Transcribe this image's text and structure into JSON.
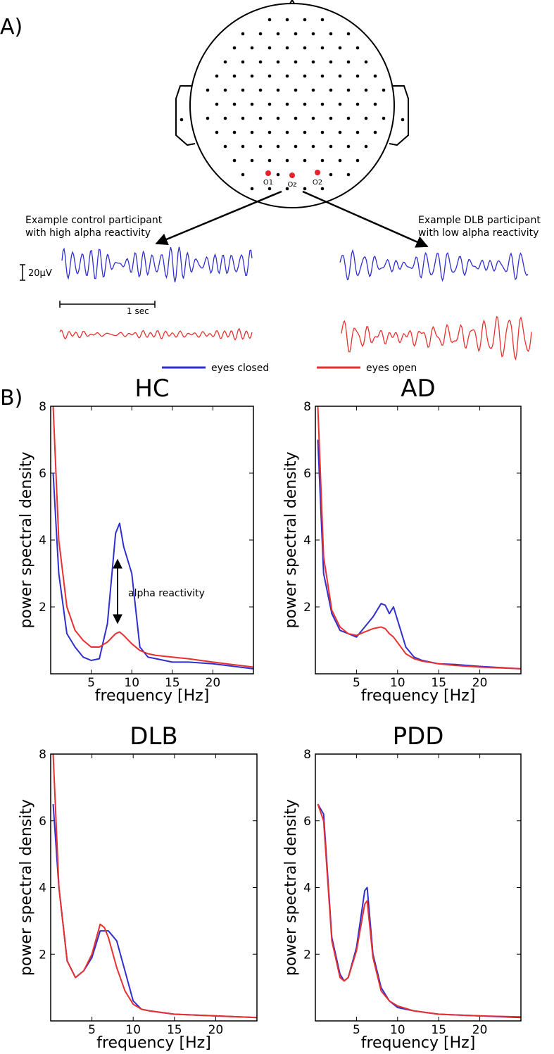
{
  "panel_a": {
    "label": "A)",
    "electrodes": [
      "O1",
      "Oz",
      "O2"
    ],
    "left_caption": [
      "Example control participant",
      "with high alpha reactivity"
    ],
    "right_caption": [
      "Example DLB participant",
      "with low alpha reactivity"
    ],
    "amplitude_scale": "20µV",
    "time_scale": "1 sec"
  },
  "panel_b": {
    "label": "B)"
  },
  "chart_data": [
    {
      "type": "line",
      "title": "HC",
      "x_label": "frequency [Hz]",
      "y_label": "power spectral density",
      "annotation": "alpha reactivity",
      "xlim": [
        0,
        25
      ],
      "ylim": [
        0,
        8
      ],
      "xticks": [
        5,
        10,
        15,
        20
      ],
      "yticks": [
        2,
        4,
        6,
        8
      ],
      "x": [
        0.3,
        1,
        2,
        3,
        4,
        5,
        6,
        7,
        8,
        8.5,
        9,
        10,
        11,
        12,
        13,
        15,
        17,
        20,
        25
      ],
      "series": [
        {
          "name": "eyes closed",
          "color": "#2f2fd0",
          "values": [
            6,
            3,
            1.2,
            0.8,
            0.5,
            0.4,
            0.45,
            1.5,
            4.2,
            4.5,
            3.8,
            3.0,
            0.8,
            0.5,
            0.45,
            0.35,
            0.35,
            0.3,
            0.15
          ]
        },
        {
          "name": "eyes open",
          "color": "#e8312f",
          "values": [
            8,
            4,
            2,
            1.3,
            1.0,
            0.8,
            0.8,
            0.95,
            1.2,
            1.25,
            1.15,
            0.9,
            0.7,
            0.6,
            0.55,
            0.5,
            0.45,
            0.35,
            0.2
          ]
        }
      ]
    },
    {
      "type": "line",
      "title": "AD",
      "x_label": "frequency [Hz]",
      "y_label": "power spectral density",
      "xlim": [
        0,
        25
      ],
      "ylim": [
        0,
        8
      ],
      "xticks": [
        5,
        10,
        15,
        20
      ],
      "yticks": [
        2,
        4,
        6,
        8
      ],
      "x": [
        0.3,
        1,
        2,
        3,
        4,
        5,
        6,
        7,
        8,
        8.5,
        9,
        9.5,
        11,
        12,
        13,
        15,
        17,
        20,
        25
      ],
      "series": [
        {
          "name": "eyes closed",
          "color": "#2f2fd0",
          "values": [
            7,
            3,
            1.8,
            1.3,
            1.2,
            1.1,
            1.4,
            1.7,
            2.1,
            2.05,
            1.8,
            2.0,
            0.8,
            0.5,
            0.4,
            0.3,
            0.28,
            0.22,
            0.15
          ]
        },
        {
          "name": "eyes open",
          "color": "#e8312f",
          "values": [
            8,
            3.5,
            1.9,
            1.4,
            1.2,
            1.15,
            1.25,
            1.35,
            1.4,
            1.35,
            1.2,
            1.1,
            0.6,
            0.45,
            0.38,
            0.3,
            0.25,
            0.2,
            0.15
          ]
        }
      ]
    },
    {
      "type": "line",
      "title": "DLB",
      "x_label": "frequency [Hz]",
      "y_label": "power spectral density",
      "xlim": [
        0,
        25
      ],
      "ylim": [
        0,
        8
      ],
      "xticks": [
        5,
        10,
        15,
        20
      ],
      "yticks": [
        2,
        4,
        6,
        8
      ],
      "x": [
        0.3,
        1,
        2,
        3,
        4,
        5,
        6,
        6.5,
        7,
        8,
        9,
        10,
        11,
        12,
        15,
        20,
        25
      ],
      "series": [
        {
          "name": "eyes closed",
          "color": "#2f2fd0",
          "values": [
            6.5,
            4,
            1.8,
            1.3,
            1.5,
            1.9,
            2.7,
            2.7,
            2.7,
            2.4,
            1.5,
            0.6,
            0.35,
            0.3,
            0.2,
            0.15,
            0.1
          ]
        },
        {
          "name": "eyes open",
          "color": "#e8312f",
          "values": [
            8,
            4,
            1.8,
            1.3,
            1.5,
            2.0,
            2.9,
            2.8,
            2.5,
            1.6,
            0.9,
            0.5,
            0.35,
            0.3,
            0.2,
            0.15,
            0.1
          ]
        }
      ]
    },
    {
      "type": "line",
      "title": "PDD",
      "x_label": "frequency [Hz]",
      "y_label": "power spectral density",
      "xlim": [
        0,
        25
      ],
      "ylim": [
        0,
        8
      ],
      "xticks": [
        5,
        10,
        15,
        20
      ],
      "yticks": [
        2,
        4,
        6,
        8
      ],
      "x": [
        0.3,
        1,
        2,
        3,
        3.5,
        4,
        5,
        6,
        6.3,
        7,
        8,
        9,
        10,
        12,
        15,
        20,
        25
      ],
      "series": [
        {
          "name": "eyes closed",
          "color": "#2f2fd0",
          "values": [
            6.5,
            6.2,
            2.5,
            1.4,
            1.2,
            1.3,
            2.2,
            3.9,
            4.0,
            2.0,
            1.0,
            0.6,
            0.4,
            0.3,
            0.2,
            0.15,
            0.1
          ]
        },
        {
          "name": "eyes open",
          "color": "#e8312f",
          "values": [
            6.5,
            6.0,
            2.4,
            1.3,
            1.2,
            1.3,
            2.1,
            3.5,
            3.6,
            1.9,
            0.9,
            0.6,
            0.45,
            0.3,
            0.2,
            0.15,
            0.12
          ]
        }
      ]
    }
  ]
}
